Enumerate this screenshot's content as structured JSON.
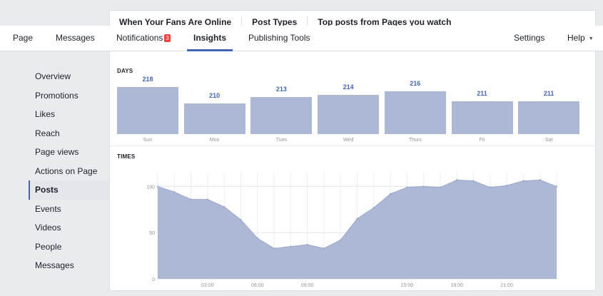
{
  "subtabs": [
    "When Your Fans Are Online",
    "Post Types",
    "Top posts from Pages you watch"
  ],
  "nav": {
    "page": "Page",
    "messages": "Messages",
    "notifications": "Notifications",
    "notifications_count": "3",
    "insights": "Insights",
    "publishing_tools": "Publishing Tools",
    "settings": "Settings",
    "help": "Help"
  },
  "sidebar": {
    "items": [
      "Overview",
      "Promotions",
      "Likes",
      "Reach",
      "Page views",
      "Actions on Page",
      "Posts",
      "Events",
      "Videos",
      "People",
      "Messages"
    ],
    "active": "Posts"
  },
  "days_section": {
    "label": "DAYS",
    "days": [
      {
        "name": "Sun",
        "value": 218
      },
      {
        "name": "Mon",
        "value": 210
      },
      {
        "name": "Tues",
        "value": 213
      },
      {
        "name": "Wed",
        "value": 214
      },
      {
        "name": "Thurs",
        "value": 216
      },
      {
        "name": "Fri",
        "value": 211
      },
      {
        "name": "Sat",
        "value": 211
      }
    ]
  },
  "times_section": {
    "label": "TIMES"
  },
  "colors": {
    "accent": "#4267b2",
    "bar": "#adb8d5",
    "badge": "#fa3e3e"
  },
  "chart_data": {
    "type": "area",
    "ylim": [
      0,
      115
    ],
    "y_ticks": [
      0,
      50,
      100
    ],
    "x_tick_labels": [
      {
        "hour": 3,
        "label": "03:00"
      },
      {
        "hour": 6,
        "label": "06:00"
      },
      {
        "hour": 9,
        "label": "09:00"
      },
      {
        "hour": 15,
        "label": "15:00"
      },
      {
        "hour": 18,
        "label": "18:00"
      },
      {
        "hour": 21,
        "label": "21:00"
      }
    ],
    "x": [
      0,
      1,
      2,
      3,
      4,
      5,
      6,
      7,
      8,
      9,
      10,
      11,
      12,
      13,
      14,
      15,
      16,
      17,
      18,
      19,
      20,
      21,
      22,
      23,
      24
    ],
    "values": [
      100,
      94,
      86,
      86,
      78,
      64,
      44,
      33,
      35,
      37,
      33,
      42,
      65,
      77,
      92,
      99,
      100,
      99,
      107,
      106,
      99,
      101,
      106,
      107,
      100
    ],
    "grid": true
  }
}
